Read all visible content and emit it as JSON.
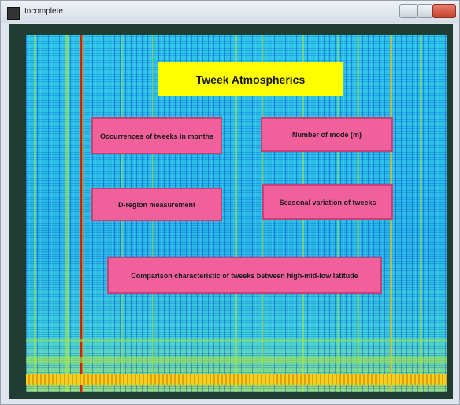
{
  "window": {
    "title": "Incomplete"
  },
  "app": {
    "heading": "Tweek Atmospherics",
    "buttons": [
      "Occurrences of tweeks in months",
      "Number of mode (m)",
      "D-region measurement",
      "Seasonal variation of tweeks",
      "Comparison characteristic of tweeks between high-mid-low latitude"
    ]
  }
}
